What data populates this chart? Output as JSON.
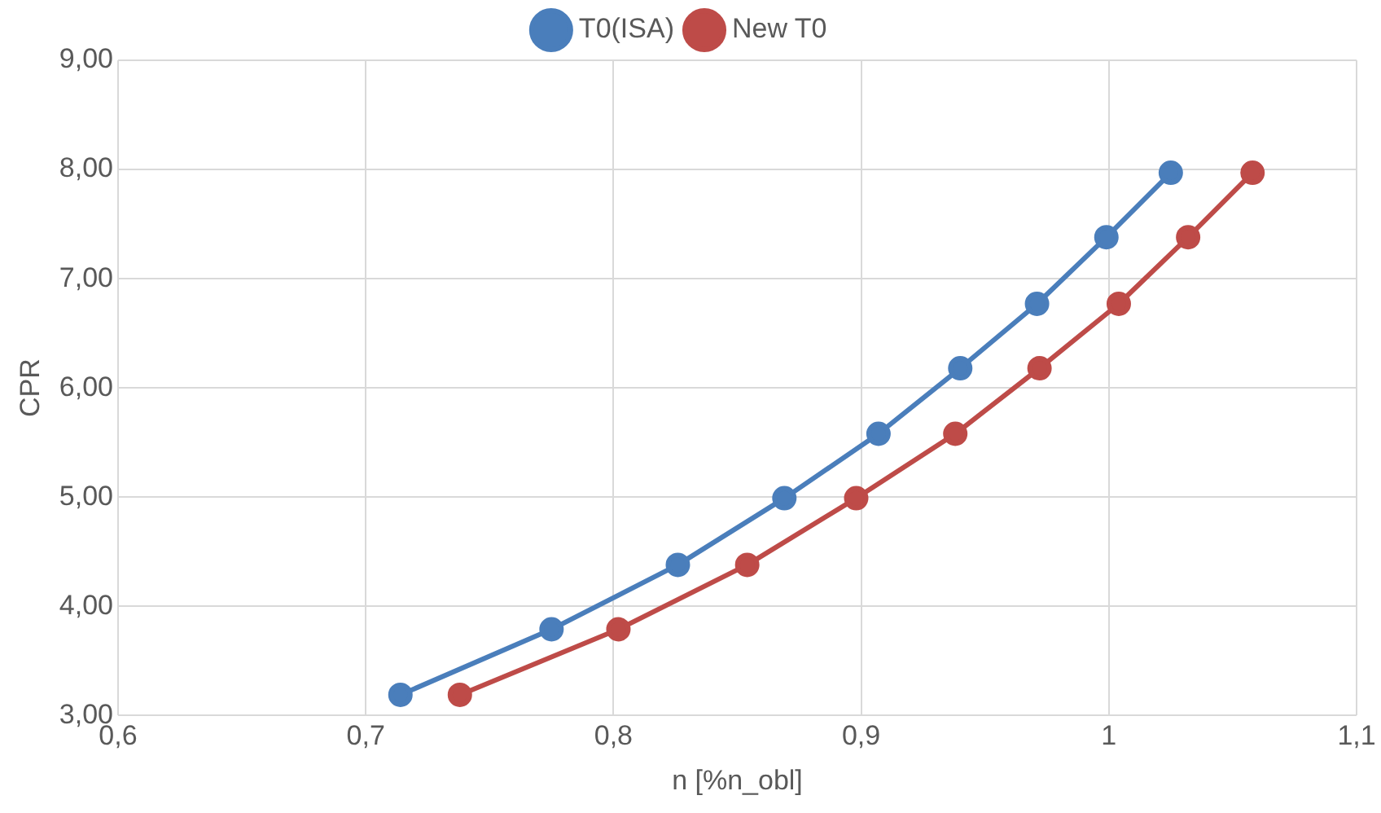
{
  "chart_data": {
    "type": "line",
    "xlabel": "n [%n_obl]",
    "ylabel": "CPR",
    "xlim": [
      0.6,
      1.1
    ],
    "xticks": [
      {
        "value": 0.6,
        "label": "0,6"
      },
      {
        "value": 0.7,
        "label": "0,7"
      },
      {
        "value": 0.8,
        "label": "0,8"
      },
      {
        "value": 0.9,
        "label": "0,9"
      },
      1,
      {
        "value": 1.1,
        "label": "1,1"
      }
    ],
    "ylim": [
      3,
      9
    ],
    "yticks": [
      {
        "value": 3,
        "label": "3,00"
      },
      {
        "value": 4,
        "label": "4,00"
      },
      {
        "value": 5,
        "label": "5,00"
      },
      {
        "value": 6,
        "label": "6,00"
      },
      {
        "value": 7,
        "label": "7,00"
      },
      {
        "value": 8,
        "label": "8,00"
      },
      {
        "value": 9,
        "label": "9,00"
      }
    ],
    "grid": true,
    "legend": "top",
    "marker": "circle",
    "line_style": "solid",
    "series": [
      {
        "name": "T0(ISA)",
        "color": "#4a7ebb",
        "x": [
          0.714,
          0.775,
          0.826,
          0.869,
          0.907,
          0.94,
          0.971,
          0.999,
          1.025
        ],
        "values": [
          3.19,
          3.79,
          4.38,
          4.99,
          5.58,
          6.18,
          6.77,
          7.38,
          7.97
        ]
      },
      {
        "name": "New T0",
        "color": "#be4b48",
        "x": [
          0.738,
          0.802,
          0.854,
          0.898,
          0.938,
          0.972,
          1.004,
          1.032,
          1.058
        ],
        "values": [
          3.19,
          3.79,
          4.38,
          4.99,
          5.58,
          6.18,
          6.77,
          7.38,
          7.97
        ]
      }
    ]
  }
}
